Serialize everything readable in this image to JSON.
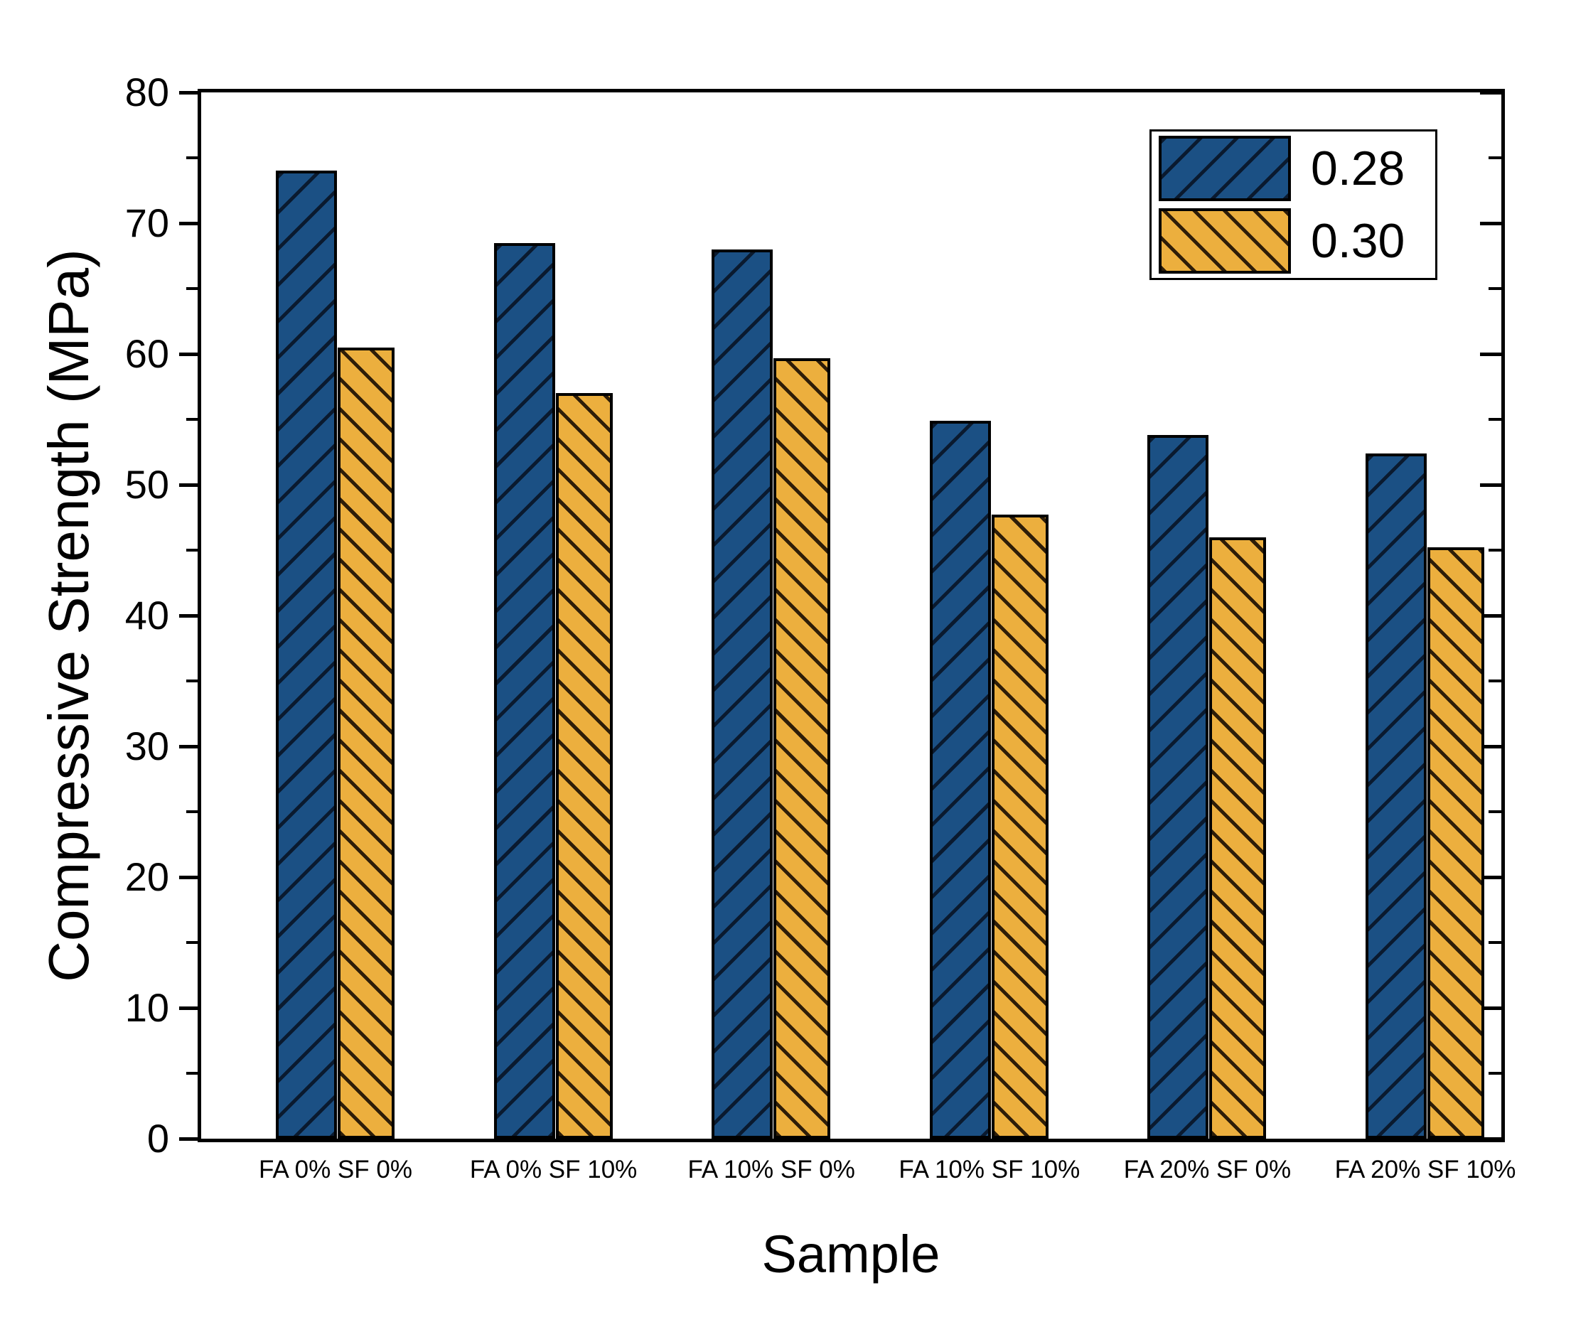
{
  "chart_data": {
    "type": "bar",
    "title": "",
    "xlabel": "Sample",
    "ylabel": "Compressive Strength (MPa)",
    "ylim": [
      0,
      80
    ],
    "ytick_major_step": 10,
    "ytick_minor_step": 5,
    "ytick_labels": [
      "0",
      "10",
      "20",
      "30",
      "40",
      "50",
      "60",
      "70",
      "80"
    ],
    "grid": false,
    "legend_position": "top-right",
    "categories": [
      "FA 0% SF 0%",
      "FA 0% SF 10%",
      "FA 10% SF 0%",
      "FA 10% SF 10%",
      "FA 20% SF 0%",
      "FA 20% SF 10%"
    ],
    "series": [
      {
        "name": "0.28",
        "color": "#1B5084",
        "hatch": "/",
        "values": [
          74.0,
          68.5,
          68.0,
          54.9,
          53.8,
          52.4
        ]
      },
      {
        "name": "0.30",
        "color": "#ECAF3E",
        "hatch": "\\",
        "values": [
          60.5,
          57.0,
          59.7,
          47.7,
          46.0,
          45.2
        ]
      }
    ]
  },
  "colors": {
    "background": "#FFFFFF",
    "frame": "#000000",
    "series_0_fill": "#1B5084",
    "series_0_hatch_line": "#0A1A2F",
    "series_1_fill": "#ECAF3E",
    "series_1_hatch_line": "#2E1D08"
  }
}
